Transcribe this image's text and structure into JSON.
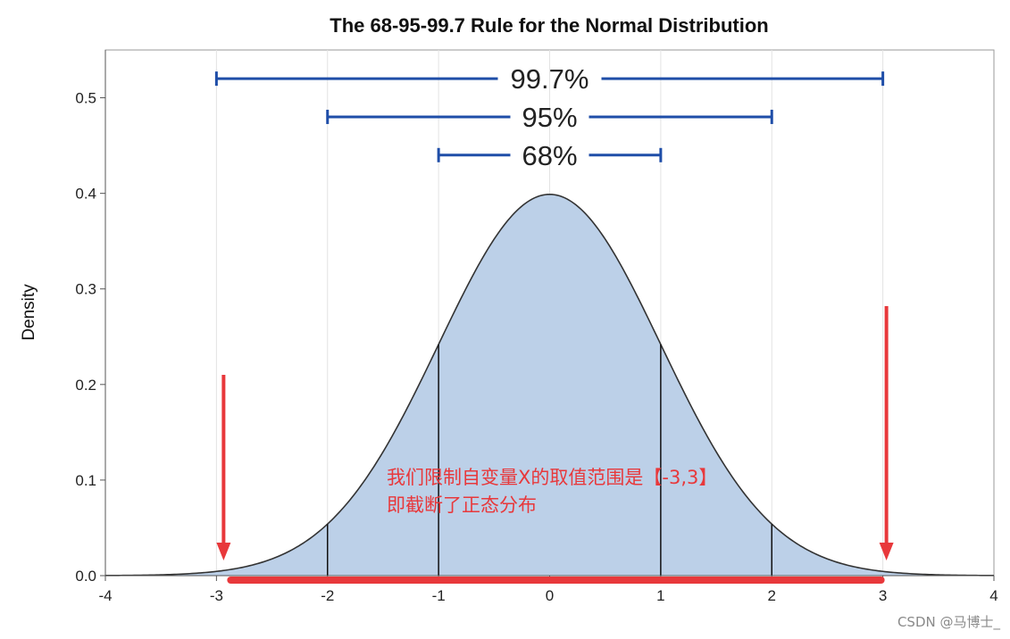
{
  "chart_data": {
    "type": "area",
    "title": "The 68-95-99.7 Rule for the Normal Distribution",
    "xlabel": "",
    "ylabel": "Density",
    "xlim": [
      -4,
      4
    ],
    "ylim": [
      0,
      0.55
    ],
    "x_ticks": [
      "-4",
      "-3",
      "-2",
      "-1",
      "0",
      "1",
      "2",
      "3",
      "4"
    ],
    "y_ticks": [
      "0.0",
      "0.1",
      "0.2",
      "0.3",
      "0.4",
      "0.5"
    ],
    "y_tick_values": [
      0,
      0.1,
      0.2,
      0.3,
      0.4,
      0.5
    ],
    "x_tick_values": [
      -4,
      -3,
      -2,
      -1,
      0,
      1,
      2,
      3,
      4
    ],
    "curve": {
      "mean": 0,
      "sd": 1,
      "x_range": [
        -4,
        4
      ]
    },
    "vertical_lines_x": [
      -2,
      -1,
      1,
      2
    ],
    "grid": "vertical",
    "fill_color": "#bcd0e8",
    "curve_color": "#333333",
    "intervals": [
      {
        "label": "99.7%",
        "from": -3,
        "to": 3,
        "y": 0.52
      },
      {
        "label": "95%",
        "from": -2,
        "to": 2,
        "y": 0.48
      },
      {
        "label": "68%",
        "from": -1,
        "to": 1,
        "y": 0.44
      }
    ],
    "interval_color": "#1f4ea8",
    "annotation": {
      "lines": [
        "我们限制自变量X的取值范围是【-3,3】",
        "即截断了正态分布"
      ],
      "color": "#e8383b",
      "arrows_x": [
        -3,
        3
      ],
      "range_bar": [
        -3,
        3
      ]
    }
  },
  "watermark": "CSDN @马博士_"
}
